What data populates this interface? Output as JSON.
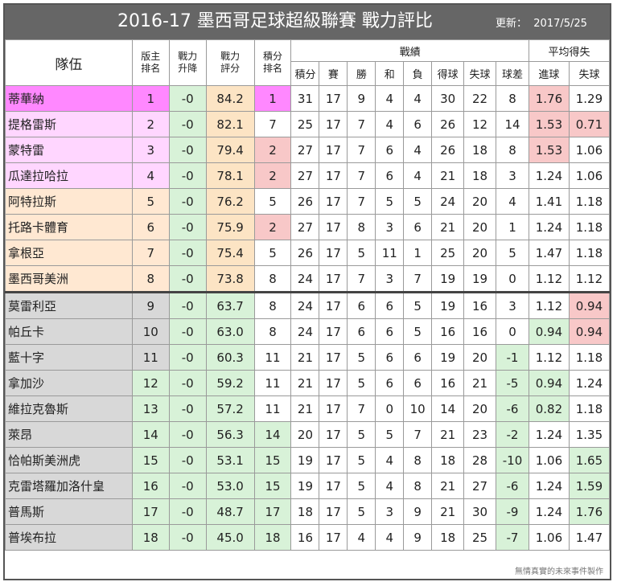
{
  "title": "2016-17 墨西哥足球超級聯賽  戰力評比",
  "updated_label": "更新：",
  "updated_date": "2017/5/25",
  "headers": {
    "team": "隊伍",
    "rank": [
      "版主",
      "排名"
    ],
    "change": [
      "戰力",
      "升降"
    ],
    "power": [
      "戰力",
      "評分"
    ],
    "points_rank": [
      "積分",
      "排名"
    ],
    "record": "戰績",
    "record_cols": [
      "積分",
      "賽",
      "勝",
      "和",
      "負",
      "得球",
      "失球",
      "球差"
    ],
    "avg": "平均得失",
    "avg_cols": [
      "進球",
      "失球"
    ]
  },
  "rows": [
    {
      "team": "蒂華納",
      "rank": "1",
      "chg": "-0",
      "power": "84.2",
      "prank": "1",
      "pts": "31",
      "gp": "17",
      "w": "9",
      "d": "4",
      "l": "4",
      "gf": "30",
      "ga": "22",
      "gd": "8",
      "avg_f": "1.76",
      "avg_a": "1.29"
    },
    {
      "team": "提格雷斯",
      "rank": "2",
      "chg": "-0",
      "power": "82.1",
      "prank": "7",
      "pts": "25",
      "gp": "17",
      "w": "7",
      "d": "4",
      "l": "6",
      "gf": "26",
      "ga": "12",
      "gd": "14",
      "avg_f": "1.53",
      "avg_a": "0.71"
    },
    {
      "team": "蒙特雷",
      "rank": "3",
      "chg": "-0",
      "power": "79.4",
      "prank": "2",
      "pts": "27",
      "gp": "17",
      "w": "7",
      "d": "6",
      "l": "4",
      "gf": "26",
      "ga": "18",
      "gd": "8",
      "avg_f": "1.53",
      "avg_a": "1.06"
    },
    {
      "team": "瓜達拉哈拉",
      "rank": "4",
      "chg": "-0",
      "power": "78.1",
      "prank": "2",
      "pts": "27",
      "gp": "17",
      "w": "7",
      "d": "6",
      "l": "4",
      "gf": "21",
      "ga": "18",
      "gd": "3",
      "avg_f": "1.24",
      "avg_a": "1.06"
    },
    {
      "team": "阿特拉斯",
      "rank": "5",
      "chg": "-0",
      "power": "76.2",
      "prank": "5",
      "pts": "26",
      "gp": "17",
      "w": "7",
      "d": "5",
      "l": "5",
      "gf": "24",
      "ga": "20",
      "gd": "4",
      "avg_f": "1.41",
      "avg_a": "1.18"
    },
    {
      "team": "托路卡體育",
      "rank": "6",
      "chg": "-0",
      "power": "75.9",
      "prank": "2",
      "pts": "27",
      "gp": "17",
      "w": "8",
      "d": "3",
      "l": "6",
      "gf": "21",
      "ga": "20",
      "gd": "1",
      "avg_f": "1.24",
      "avg_a": "1.18"
    },
    {
      "team": "拿根亞",
      "rank": "7",
      "chg": "-0",
      "power": "75.4",
      "prank": "5",
      "pts": "26",
      "gp": "17",
      "w": "5",
      "d": "11",
      "l": "1",
      "gf": "25",
      "ga": "20",
      "gd": "5",
      "avg_f": "1.47",
      "avg_a": "1.18"
    },
    {
      "team": "墨西哥美洲",
      "rank": "8",
      "chg": "-0",
      "power": "73.8",
      "prank": "8",
      "pts": "24",
      "gp": "17",
      "w": "7",
      "d": "3",
      "l": "7",
      "gf": "19",
      "ga": "19",
      "gd": "0",
      "avg_f": "1.12",
      "avg_a": "1.12"
    },
    {
      "team": "莫雷利亞",
      "rank": "9",
      "chg": "-0",
      "power": "63.7",
      "prank": "8",
      "pts": "24",
      "gp": "17",
      "w": "6",
      "d": "6",
      "l": "5",
      "gf": "19",
      "ga": "16",
      "gd": "3",
      "avg_f": "1.12",
      "avg_a": "0.94"
    },
    {
      "team": "帕丘卡",
      "rank": "10",
      "chg": "-0",
      "power": "63.0",
      "prank": "8",
      "pts": "24",
      "gp": "17",
      "w": "6",
      "d": "6",
      "l": "5",
      "gf": "16",
      "ga": "16",
      "gd": "0",
      "avg_f": "0.94",
      "avg_a": "0.94"
    },
    {
      "team": "藍十字",
      "rank": "11",
      "chg": "-0",
      "power": "60.3",
      "prank": "11",
      "pts": "21",
      "gp": "17",
      "w": "5",
      "d": "6",
      "l": "6",
      "gf": "19",
      "ga": "20",
      "gd": "-1",
      "avg_f": "1.12",
      "avg_a": "1.18"
    },
    {
      "team": "拿加沙",
      "rank": "12",
      "chg": "-0",
      "power": "59.2",
      "prank": "11",
      "pts": "21",
      "gp": "17",
      "w": "5",
      "d": "6",
      "l": "6",
      "gf": "16",
      "ga": "21",
      "gd": "-5",
      "avg_f": "0.94",
      "avg_a": "1.24"
    },
    {
      "team": "維拉克魯斯",
      "rank": "13",
      "chg": "-0",
      "power": "57.2",
      "prank": "11",
      "pts": "21",
      "gp": "17",
      "w": "7",
      "d": "0",
      "l": "10",
      "gf": "14",
      "ga": "20",
      "gd": "-6",
      "avg_f": "0.82",
      "avg_a": "1.18"
    },
    {
      "team": "萊昂",
      "rank": "14",
      "chg": "-0",
      "power": "56.3",
      "prank": "14",
      "pts": "20",
      "gp": "17",
      "w": "5",
      "d": "5",
      "l": "7",
      "gf": "21",
      "ga": "23",
      "gd": "-2",
      "avg_f": "1.24",
      "avg_a": "1.35"
    },
    {
      "team": "恰帕斯美洲虎",
      "rank": "15",
      "chg": "-0",
      "power": "53.1",
      "prank": "15",
      "pts": "19",
      "gp": "17",
      "w": "5",
      "d": "4",
      "l": "8",
      "gf": "18",
      "ga": "28",
      "gd": "-10",
      "avg_f": "1.06",
      "avg_a": "1.65"
    },
    {
      "team": "克雷塔羅加洛什皇",
      "rank": "16",
      "chg": "-0",
      "power": "53.0",
      "prank": "15",
      "pts": "19",
      "gp": "17",
      "w": "5",
      "d": "4",
      "l": "8",
      "gf": "21",
      "ga": "27",
      "gd": "-6",
      "avg_f": "1.24",
      "avg_a": "1.59"
    },
    {
      "team": "普馬斯",
      "rank": "17",
      "chg": "-0",
      "power": "48.7",
      "prank": "17",
      "pts": "18",
      "gp": "17",
      "w": "5",
      "d": "3",
      "l": "9",
      "gf": "21",
      "ga": "30",
      "gd": "-9",
      "avg_f": "1.24",
      "avg_a": "1.76"
    },
    {
      "team": "普埃布拉",
      "rank": "18",
      "chg": "-0",
      "power": "45.0",
      "prank": "18",
      "pts": "16",
      "gp": "17",
      "w": "4",
      "d": "4",
      "l": "9",
      "gf": "18",
      "ga": "25",
      "gd": "-7",
      "avg_f": "1.06",
      "avg_a": "1.47"
    }
  ],
  "footer": "無情真實的未來事件製作"
}
